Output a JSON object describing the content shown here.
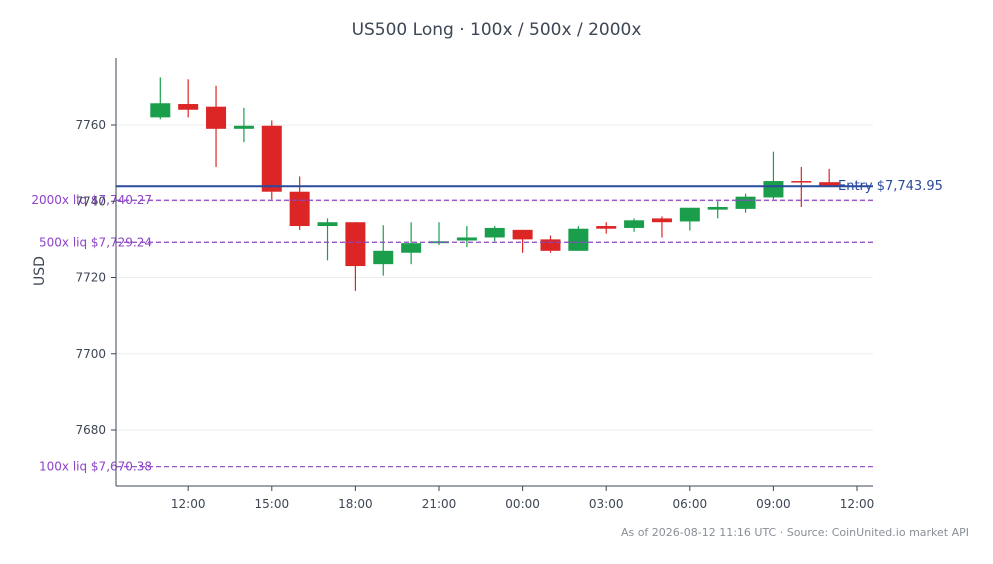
{
  "chart_data": {
    "type": "candlestick",
    "title": "US500 Long · 100x / 500x / 2000x",
    "ylabel": "USD",
    "xlabel": "",
    "x_ticks": [
      "12:00",
      "15:00",
      "18:00",
      "21:00",
      "00:00",
      "03:00",
      "06:00",
      "09:00",
      "12:00"
    ],
    "y_ticks": [
      7680,
      7700,
      7720,
      7760
    ],
    "y_tick_partial": "7740",
    "ylim": [
      7666,
      7780
    ],
    "grid": true,
    "candles": [
      {
        "t": "11:00",
        "o": 7762.0,
        "h": 7772.5,
        "l": 7761.5,
        "c": 7765.7
      },
      {
        "t": "12:00",
        "o": 7765.5,
        "h": 7772.0,
        "l": 7762.0,
        "c": 7764.0
      },
      {
        "t": "13:00",
        "o": 7764.8,
        "h": 7770.3,
        "l": 7749.0,
        "c": 7759.0
      },
      {
        "t": "14:00",
        "o": 7759.0,
        "h": 7764.5,
        "l": 7755.5,
        "c": 7759.8
      },
      {
        "t": "15:00",
        "o": 7759.8,
        "h": 7761.2,
        "l": 7740.5,
        "c": 7742.5
      },
      {
        "t": "16:00",
        "o": 7742.5,
        "h": 7746.5,
        "l": 7732.5,
        "c": 7733.5
      },
      {
        "t": "17:00",
        "o": 7733.5,
        "h": 7735.5,
        "l": 7724.5,
        "c": 7734.5
      },
      {
        "t": "18:00",
        "o": 7734.5,
        "h": 7734.5,
        "l": 7716.5,
        "c": 7723.0
      },
      {
        "t": "19:00",
        "o": 7723.5,
        "h": 7733.7,
        "l": 7720.5,
        "c": 7727.0
      },
      {
        "t": "20:00",
        "o": 7726.5,
        "h": 7734.5,
        "l": 7723.5,
        "c": 7729.0
      },
      {
        "t": "21:00",
        "o": 7729.0,
        "h": 7734.5,
        "l": 7728.5,
        "c": 7729.5
      },
      {
        "t": "22:00",
        "o": 7729.7,
        "h": 7733.5,
        "l": 7728.0,
        "c": 7730.5
      },
      {
        "t": "23:00",
        "o": 7730.5,
        "h": 7733.5,
        "l": 7729.5,
        "c": 7733.0
      },
      {
        "t": "00:00",
        "o": 7732.5,
        "h": 7732.5,
        "l": 7726.5,
        "c": 7730.0
      },
      {
        "t": "01:00",
        "o": 7730.0,
        "h": 7731.0,
        "l": 7726.5,
        "c": 7727.0
      },
      {
        "t": "02:00",
        "o": 7727.0,
        "h": 7733.5,
        "l": 7727.0,
        "c": 7732.8
      },
      {
        "t": "03:00",
        "o": 7733.5,
        "h": 7734.5,
        "l": 7731.5,
        "c": 7732.8
      },
      {
        "t": "04:00",
        "o": 7733.0,
        "h": 7735.5,
        "l": 7732.0,
        "c": 7735.0
      },
      {
        "t": "05:00",
        "o": 7735.5,
        "h": 7736.0,
        "l": 7730.5,
        "c": 7734.5
      },
      {
        "t": "06:00",
        "o": 7734.7,
        "h": 7738.0,
        "l": 7732.3,
        "c": 7738.3
      },
      {
        "t": "07:00",
        "o": 7737.8,
        "h": 7740.0,
        "l": 7735.5,
        "c": 7738.5
      },
      {
        "t": "08:00",
        "o": 7738.0,
        "h": 7742.0,
        "l": 7737.0,
        "c": 7741.2
      },
      {
        "t": "09:00",
        "o": 7741.0,
        "h": 7753.0,
        "l": 7740.5,
        "c": 7745.3
      },
      {
        "t": "10:00",
        "o": 7745.3,
        "h": 7749.0,
        "l": 7738.5,
        "c": 7745.0
      },
      {
        "t": "11:00",
        "o": 7745.0,
        "h": 7748.5,
        "l": 7744.0,
        "c": 7744.0
      }
    ],
    "reference_lines": [
      {
        "label": "Entry $7,743.95",
        "value": 7743.95,
        "style": "solid",
        "color": "#2a4a9c",
        "label_side": "right"
      },
      {
        "label": "2000x liq $7,740.27",
        "value": 7740.27,
        "style": "dashed",
        "color": "#8d44c9",
        "label_side": "left"
      },
      {
        "label": "500x liq $7,729.24",
        "value": 7729.24,
        "style": "dashed",
        "color": "#8d44c9",
        "label_side": "left"
      },
      {
        "label": "100x liq $7,670.38",
        "value": 7670.38,
        "style": "dashed",
        "color": "#8d44c9",
        "label_side": "left"
      }
    ],
    "colors": {
      "up": "#1a9e4b",
      "down": "#dc2626",
      "axis": "#3d4654",
      "grid": "#eeeeee"
    }
  },
  "footer": "As of 2026-08-12 11:16 UTC · Source: CoinUnited.io market API"
}
